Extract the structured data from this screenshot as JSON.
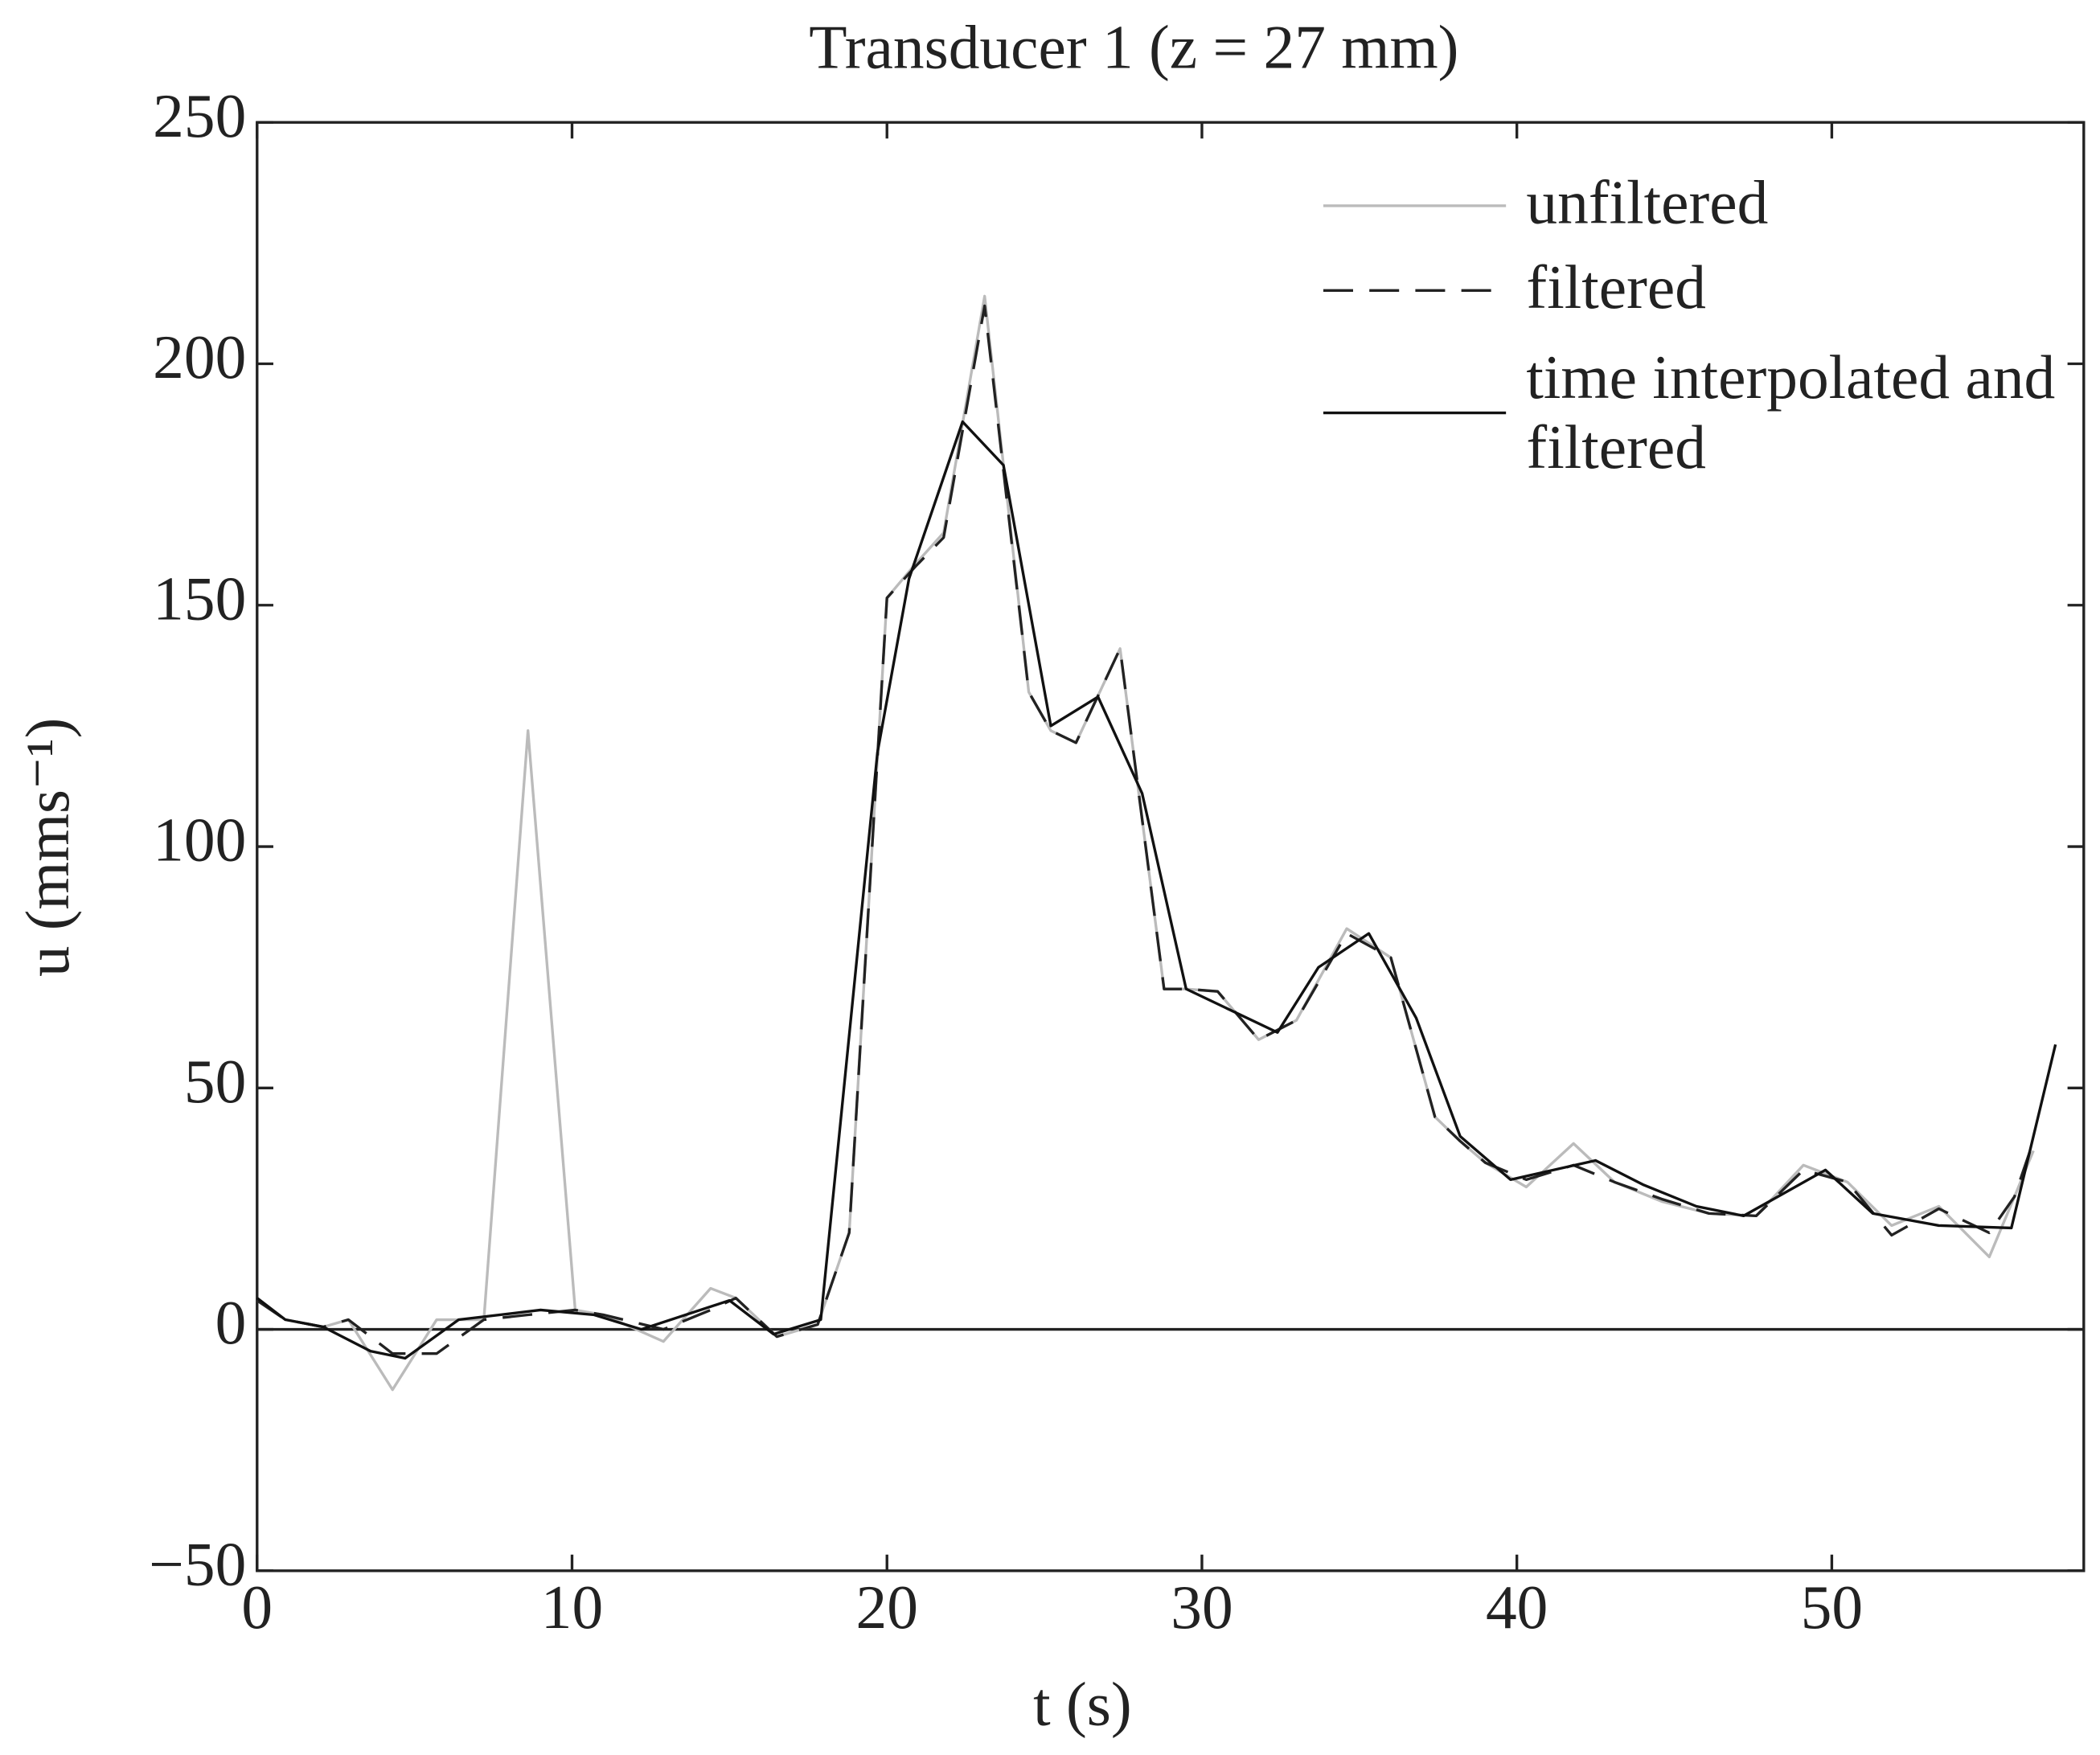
{
  "chart_data": {
    "type": "line",
    "title": "Transducer 1 (z = 27 mm)",
    "xlabel": "t (s)",
    "ylabel": "u (mms⁻¹)",
    "xlim": [
      0,
      58
    ],
    "ylim": [
      -50,
      250
    ],
    "xticks": [
      0,
      10,
      20,
      30,
      40,
      50
    ],
    "yticks": [
      {
        "value": -50,
        "label": "−50"
      },
      0,
      50,
      100,
      150,
      200,
      250
    ],
    "legend": "upper right",
    "series": [
      {
        "name": "unfiltered",
        "color": "#bbbbbb",
        "style": "solid",
        "x": [
          0,
          0.9,
          2.1,
          2.9,
          4.3,
          5.7,
          7.2,
          8.6,
          10.1,
          11,
          12.9,
          14.4,
          15.2,
          16.5,
          17.8,
          18.8,
          20,
          20.9,
          21.8,
          23.1,
          24.5,
          25.2,
          26,
          27.4,
          28.8,
          29.5,
          30.5,
          31.8,
          33,
          34.6,
          36,
          37.4,
          38.2,
          39,
          40.3,
          41.8,
          43.1,
          44.6,
          46.1,
          47.6,
          49.1,
          50.5,
          51.9,
          53.4,
          55,
          55.8,
          56.4
        ],
        "values": [
          6,
          2,
          0.5,
          2,
          -12.5,
          2,
          2,
          124,
          4,
          3,
          -2.5,
          8.5,
          6.5,
          -1.5,
          1,
          20,
          151.5,
          158.5,
          165,
          214,
          132,
          124,
          121.5,
          141,
          70.5,
          70.5,
          70,
          60,
          64,
          83,
          77,
          44,
          39,
          34.5,
          29.5,
          38.5,
          30.5,
          26.5,
          24,
          23.5,
          34,
          30.5,
          21.5,
          25.5,
          15,
          27.5,
          37
        ]
      },
      {
        "name": "filtered",
        "color": "#222222",
        "style": "dashed",
        "x": [
          0,
          0.9,
          2.1,
          2.9,
          4.3,
          5.7,
          7.2,
          8.6,
          10.1,
          11,
          12.9,
          14.4,
          15.2,
          16.5,
          17.8,
          18.8,
          20,
          20.9,
          21.8,
          23.1,
          24.5,
          25.2,
          26,
          27.4,
          28.8,
          29.5,
          30.5,
          31.8,
          33,
          34.6,
          36,
          37.4,
          38.2,
          39,
          40.3,
          41.8,
          43.1,
          44.6,
          46.1,
          47.6,
          49.1,
          50.5,
          51.9,
          53.4,
          55,
          55.8,
          56.4
        ],
        "values": [
          6,
          2,
          0.5,
          2,
          -5,
          -5,
          2,
          3,
          4,
          3,
          0,
          4,
          6.5,
          -1.5,
          1,
          20,
          151.5,
          158,
          164,
          212,
          132,
          124,
          121.5,
          141,
          70.5,
          70.5,
          70,
          60,
          64,
          82,
          77,
          44,
          39,
          34.5,
          31,
          34,
          30.5,
          27,
          24,
          23.5,
          33,
          30.5,
          19.5,
          25,
          20,
          27.5,
          39
        ]
      },
      {
        "name": "time interpolated and filtered",
        "color": "#111111",
        "style": "solid",
        "x": [
          0,
          0.9,
          2.1,
          3.6,
          4.7,
          6.4,
          9,
          10.7,
          12.2,
          15,
          16.4,
          17.9,
          19.7,
          20.7,
          22.4,
          23.7,
          25.2,
          26.7,
          28.1,
          29.5,
          32.4,
          33.7,
          35.3,
          36.8,
          38.2,
          39.8,
          42.5,
          44,
          45.7,
          47.2,
          49.8,
          51.3,
          53.4,
          55.7,
          57.1
        ],
        "values": [
          6.5,
          2,
          0.5,
          -4.5,
          -6,
          2,
          4,
          3,
          0,
          6,
          -1,
          2,
          119.5,
          155.5,
          188,
          179,
          125,
          131,
          111,
          70.5,
          61.5,
          75,
          82,
          64.5,
          40,
          31,
          35,
          30,
          25.5,
          23.5,
          33,
          24,
          21.5,
          21,
          59
        ]
      }
    ]
  }
}
